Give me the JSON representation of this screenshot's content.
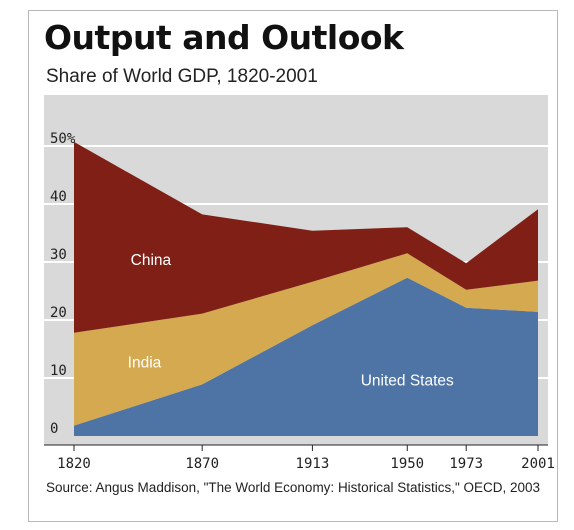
{
  "header": {
    "title": "Output and Outlook",
    "subtitle": "Share of World GDP, 1820-2001"
  },
  "chart_data": {
    "type": "area",
    "stacked": true,
    "x": [
      1820,
      1870,
      1913,
      1950,
      1973,
      2001
    ],
    "x_tick_labels": [
      "1820",
      "1870",
      "1913",
      "1950",
      "1973",
      "2001"
    ],
    "y_tick_labels": [
      "0",
      "10",
      "20",
      "30",
      "40",
      "50%"
    ],
    "y_ticks": [
      0,
      10,
      20,
      30,
      40,
      50
    ],
    "ylim": [
      0,
      50
    ],
    "grid": "horizontal",
    "series": [
      {
        "name": "United States",
        "values": [
          1.8,
          8.9,
          19.1,
          27.3,
          22.1,
          21.4
        ],
        "color": "#4e74a6"
      },
      {
        "name": "India",
        "values": [
          16.0,
          12.2,
          7.5,
          4.2,
          3.1,
          5.4
        ],
        "color": "#d4a94f"
      },
      {
        "name": "China",
        "values": [
          32.9,
          17.1,
          8.8,
          4.5,
          4.6,
          12.3
        ],
        "color": "#7f1f16"
      }
    ]
  },
  "footer": {
    "source": "Source: Angus Maddison, \"The World Economy: Historical Statistics,\" OECD, 2003"
  }
}
